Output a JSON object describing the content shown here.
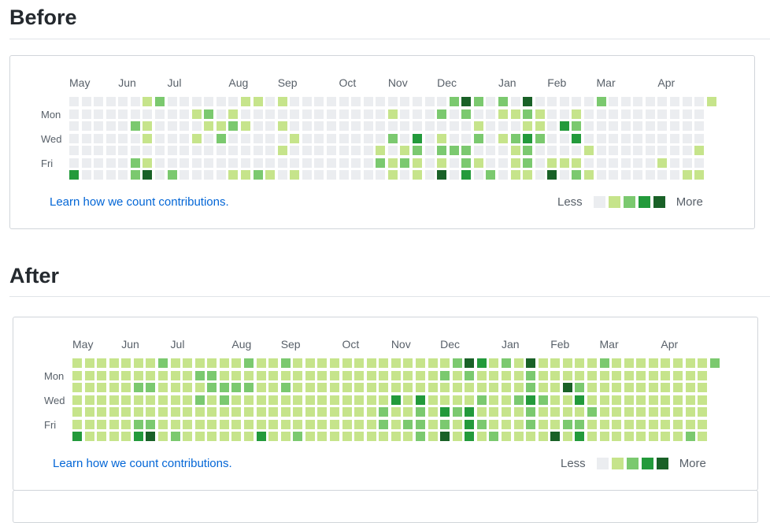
{
  "sections": [
    {
      "title": "Before",
      "default_level": 0,
      "cells": [
        {
          "6": 1,
          "7": 2,
          "14": 1,
          "15": 1,
          "17": 1,
          "31": 2,
          "32": 4,
          "33": 2,
          "35": 2,
          "37": 4,
          "43": 2,
          "52": 1
        },
        {
          "10": 1,
          "11": 2,
          "13": 1,
          "26": 1,
          "30": 2,
          "32": 2,
          "35": 1,
          "36": 1,
          "37": 2,
          "38": 1,
          "41": 1
        },
        {
          "5": 2,
          "6": 1,
          "11": 1,
          "12": 1,
          "13": 2,
          "14": 1,
          "17": 1,
          "33": 1,
          "37": 1,
          "38": 1,
          "40": 3,
          "41": 2
        },
        {
          "6": 1,
          "10": 1,
          "12": 2,
          "18": 1,
          "26": 2,
          "28": 3,
          "30": 1,
          "33": 2,
          "35": 1,
          "36": 2,
          "37": 3,
          "38": 2,
          "41": 3
        },
        {
          "17": 1,
          "25": 1,
          "27": 1,
          "28": 2,
          "30": 2,
          "31": 2,
          "32": 2,
          "36": 1,
          "37": 2,
          "42": 1,
          "51": 1
        },
        {
          "5": 2,
          "6": 1,
          "25": 2,
          "26": 1,
          "27": 2,
          "28": 1,
          "30": 1,
          "32": 2,
          "33": 1,
          "36": 1,
          "37": 2,
          "39": 1,
          "40": 1,
          "41": 1,
          "48": 1
        },
        {
          "0": 3,
          "5": 2,
          "6": 4,
          "8": 2,
          "13": 1,
          "14": 1,
          "15": 2,
          "16": 1,
          "18": 1,
          "26": 1,
          "28": 1,
          "30": 4,
          "32": 3,
          "34": 2,
          "36": 1,
          "37": 1,
          "39": 4,
          "41": 2,
          "42": 1,
          "50": 1,
          "51": 1
        }
      ]
    },
    {
      "title": "After",
      "default_level": 1,
      "cells": [
        {
          "7": 2,
          "14": 2,
          "17": 2,
          "31": 2,
          "32": 4,
          "33": 3,
          "35": 2,
          "37": 4,
          "43": 2,
          "52": 2
        },
        {
          "10": 2,
          "11": 2,
          "30": 2,
          "32": 2,
          "37": 2
        },
        {
          "5": 2,
          "6": 2,
          "11": 2,
          "12": 2,
          "13": 2,
          "14": 2,
          "17": 2,
          "37": 2,
          "40": 4,
          "41": 2
        },
        {
          "10": 2,
          "12": 2,
          "26": 3,
          "28": 3,
          "33": 2,
          "36": 2,
          "37": 3,
          "38": 2,
          "41": 3
        },
        {
          "25": 2,
          "28": 2,
          "30": 3,
          "31": 2,
          "32": 3,
          "37": 2,
          "42": 2
        },
        {
          "5": 2,
          "6": 2,
          "25": 2,
          "27": 2,
          "28": 2,
          "30": 2,
          "32": 3,
          "33": 2,
          "37": 2,
          "40": 2,
          "41": 2
        },
        {
          "0": 3,
          "5": 3,
          "6": 4,
          "8": 2,
          "15": 3,
          "18": 2,
          "28": 2,
          "30": 4,
          "32": 3,
          "34": 2,
          "39": 4,
          "41": 3,
          "50": 2
        }
      ]
    }
  ],
  "weeks": 53,
  "months": [
    {
      "label": "May",
      "week": 0
    },
    {
      "label": "Jun",
      "week": 4
    },
    {
      "label": "Jul",
      "week": 8
    },
    {
      "label": "Aug",
      "week": 13
    },
    {
      "label": "Sep",
      "week": 17
    },
    {
      "label": "Oct",
      "week": 22
    },
    {
      "label": "Nov",
      "week": 26
    },
    {
      "label": "Dec",
      "week": 30
    },
    {
      "label": "Jan",
      "week": 35
    },
    {
      "label": "Feb",
      "week": 39
    },
    {
      "label": "Mar",
      "week": 43
    },
    {
      "label": "Apr",
      "week": 48
    }
  ],
  "days": [
    {
      "label": "Mon",
      "row": 1
    },
    {
      "label": "Wed",
      "row": 3
    },
    {
      "label": "Fri",
      "row": 5
    }
  ],
  "learn_link": "Learn how we count contributions.",
  "legend": {
    "less": "Less",
    "more": "More"
  },
  "level_colors": [
    "#ebedf0",
    "#c6e48b",
    "#7bc96f",
    "#239a3b",
    "#196127"
  ]
}
